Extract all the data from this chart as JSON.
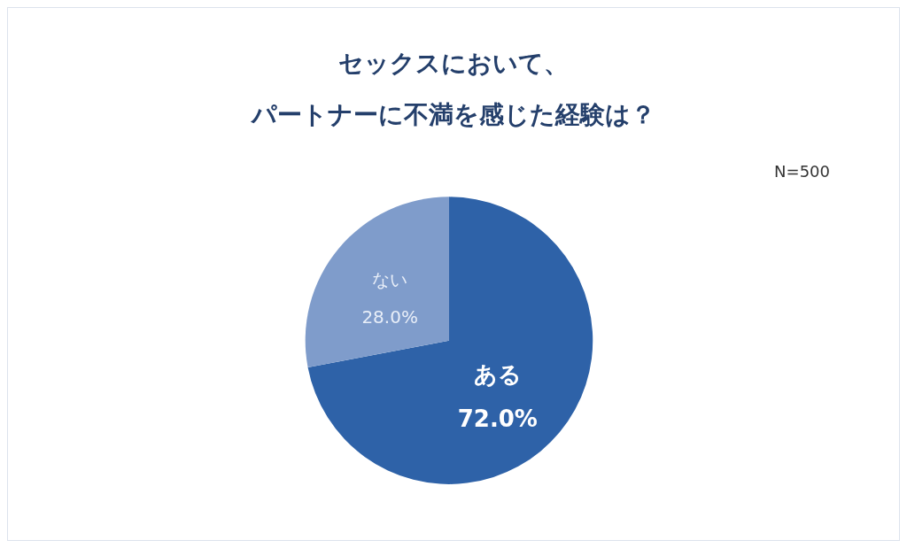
{
  "chart_data": {
    "type": "pie",
    "title": "セックスにおいて、パートナーに不満を感じた経験は？",
    "categories": [
      "ある",
      "ない"
    ],
    "values": [
      72.0,
      28.0
    ],
    "colors": [
      "#2e62a8",
      "#7f9ccb"
    ],
    "value_labels": [
      "72.0%",
      "28.0%"
    ],
    "annotations": [
      "N=500"
    ]
  }
}
